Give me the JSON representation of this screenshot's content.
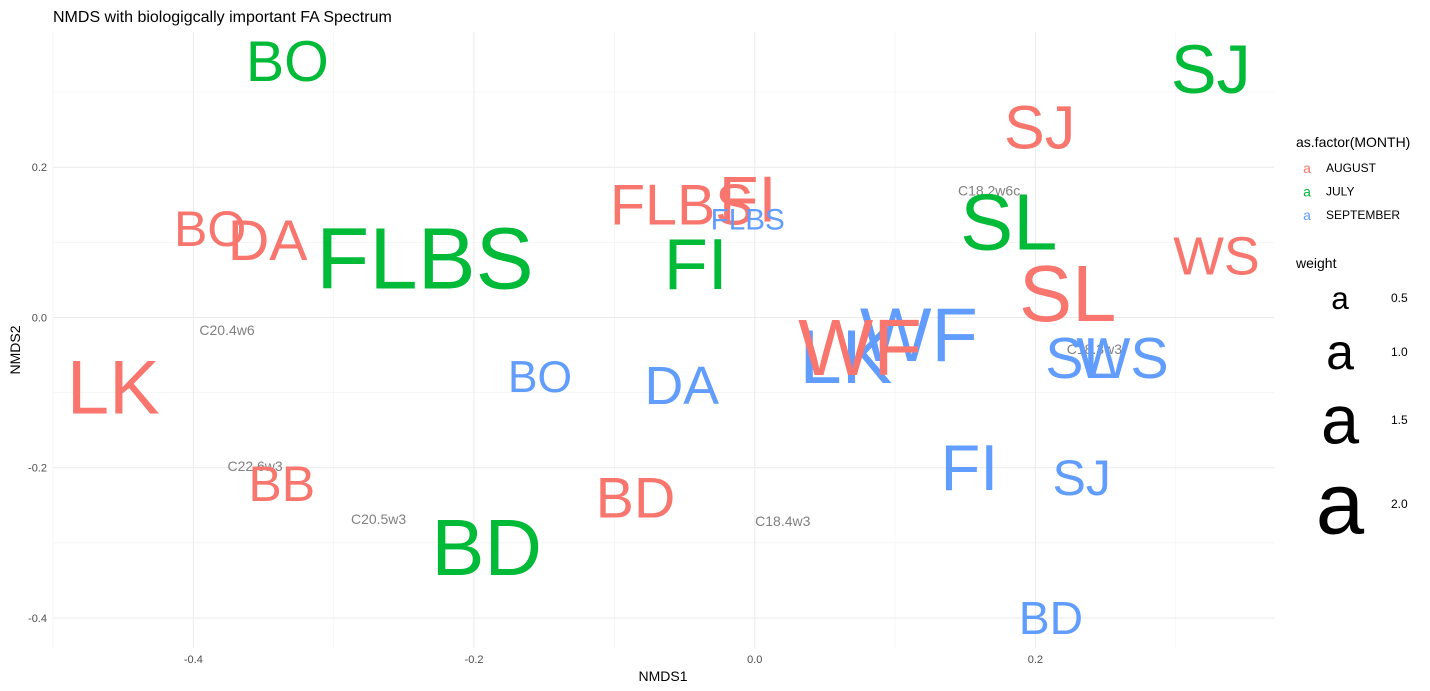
{
  "chart_data": {
    "type": "scatter",
    "title": "NMDS with biologigcally important FA Spectrum",
    "xlabel": "NMDS1",
    "ylabel": "NMDS2",
    "xlim": [
      -0.5,
      0.37
    ],
    "ylim": [
      -0.44,
      0.38
    ],
    "x_ticks": [
      "-0.4",
      "-0.2",
      "0.0",
      "0.2"
    ],
    "x_tick_values": [
      -0.4,
      -0.2,
      0.0,
      0.2
    ],
    "y_ticks": [
      "-0.4",
      "-0.2",
      "0.0",
      "0.2"
    ],
    "y_tick_values": [
      -0.4,
      -0.2,
      0.0,
      0.2
    ],
    "grid": true,
    "legend_placement": "right",
    "colors": {
      "AUGUST": "#F8766D",
      "JULY": "#00BA38",
      "SEPTEMBER": "#619CFF",
      "fa": "#808080"
    },
    "color_legend": {
      "title": "as.factor(MONTH)",
      "glyph": "a",
      "items": [
        {
          "label": "AUGUST",
          "color": "#F8766D"
        },
        {
          "label": "JULY",
          "color": "#00BA38"
        },
        {
          "label": "SEPTEMBER",
          "color": "#619CFF"
        }
      ]
    },
    "size_legend": {
      "title": "weight",
      "glyph": "a",
      "items": [
        {
          "label": "0.5",
          "weight": 0.5
        },
        {
          "label": "1.0",
          "weight": 1.0
        },
        {
          "label": "1.5",
          "weight": 1.5
        },
        {
          "label": "2.0",
          "weight": 2.0
        }
      ]
    },
    "sites": [
      {
        "label": "BO",
        "month": "JULY",
        "x": -0.333,
        "y": 0.34,
        "weight": 1.2
      },
      {
        "label": "SJ",
        "month": "JULY",
        "x": 0.325,
        "y": 0.33,
        "weight": 1.5
      },
      {
        "label": "SJ",
        "month": "AUGUST",
        "x": 0.203,
        "y": 0.253,
        "weight": 1.3
      },
      {
        "label": "FI",
        "month": "AUGUST",
        "x": -0.005,
        "y": 0.158,
        "weight": 1.4
      },
      {
        "label": "FLBS",
        "month": "AUGUST",
        "x": -0.052,
        "y": 0.149,
        "weight": 1.2
      },
      {
        "label": "FLBS",
        "month": "SEPTEMBER",
        "x": -0.005,
        "y": 0.13,
        "weight": 0.45
      },
      {
        "label": "BO",
        "month": "AUGUST",
        "x": -0.388,
        "y": 0.118,
        "weight": 1.0
      },
      {
        "label": "DA",
        "month": "AUGUST",
        "x": -0.347,
        "y": 0.102,
        "weight": 1.2
      },
      {
        "label": "FLBS",
        "month": "JULY",
        "x": -0.235,
        "y": 0.078,
        "weight": 2.0
      },
      {
        "label": "FI",
        "month": "JULY",
        "x": -0.042,
        "y": 0.07,
        "weight": 1.6
      },
      {
        "label": "SL",
        "month": "JULY",
        "x": 0.181,
        "y": 0.127,
        "weight": 1.8
      },
      {
        "label": "WS",
        "month": "AUGUST",
        "x": 0.329,
        "y": 0.081,
        "weight": 1.1
      },
      {
        "label": "SL",
        "month": "AUGUST",
        "x": 0.223,
        "y": 0.032,
        "weight": 1.8
      },
      {
        "label": "WF",
        "month": "SEPTEMBER",
        "x": 0.117,
        "y": -0.024,
        "weight": 1.7
      },
      {
        "label": "LK",
        "month": "SEPTEMBER",
        "x": 0.065,
        "y": -0.053,
        "weight": 1.7
      },
      {
        "label": "WF",
        "month": "AUGUST",
        "x": 0.075,
        "y": -0.04,
        "weight": 1.8
      },
      {
        "label": "SL",
        "month": "SEPTEMBER",
        "x": 0.232,
        "y": -0.055,
        "weight": 1.2
      },
      {
        "label": "WS",
        "month": "SEPTEMBER",
        "x": 0.262,
        "y": -0.055,
        "weight": 1.2
      },
      {
        "label": "BO",
        "month": "SEPTEMBER",
        "x": -0.153,
        "y": -0.08,
        "weight": 0.85
      },
      {
        "label": "DA",
        "month": "SEPTEMBER",
        "x": -0.052,
        "y": -0.091,
        "weight": 1.1
      },
      {
        "label": "LK",
        "month": "AUGUST",
        "x": -0.457,
        "y": -0.094,
        "weight": 1.7
      },
      {
        "label": "FI",
        "month": "SEPTEMBER",
        "x": 0.153,
        "y": -0.2,
        "weight": 1.4
      },
      {
        "label": "SJ",
        "month": "SEPTEMBER",
        "x": 0.233,
        "y": -0.214,
        "weight": 1.0
      },
      {
        "label": "BB",
        "month": "AUGUST",
        "x": -0.337,
        "y": -0.222,
        "weight": 1.0
      },
      {
        "label": "BD",
        "month": "AUGUST",
        "x": -0.085,
        "y": -0.241,
        "weight": 1.2
      },
      {
        "label": "BD",
        "month": "JULY",
        "x": -0.191,
        "y": -0.306,
        "weight": 1.8
      },
      {
        "label": "BD",
        "month": "SEPTEMBER",
        "x": 0.211,
        "y": -0.4,
        "weight": 0.9
      }
    ],
    "fatty_acids": [
      {
        "label": "C18.2w6c",
        "x": 0.167,
        "y": 0.169
      },
      {
        "label": "C20.4w6",
        "x": -0.376,
        "y": -0.017
      },
      {
        "label": "C18.3w3",
        "x": 0.242,
        "y": -0.042
      },
      {
        "label": "C22.6w3",
        "x": -0.356,
        "y": -0.198
      },
      {
        "label": "C20.5w3",
        "x": -0.268,
        "y": -0.268
      },
      {
        "label": "C18.4w3",
        "x": 0.02,
        "y": -0.271
      }
    ]
  }
}
